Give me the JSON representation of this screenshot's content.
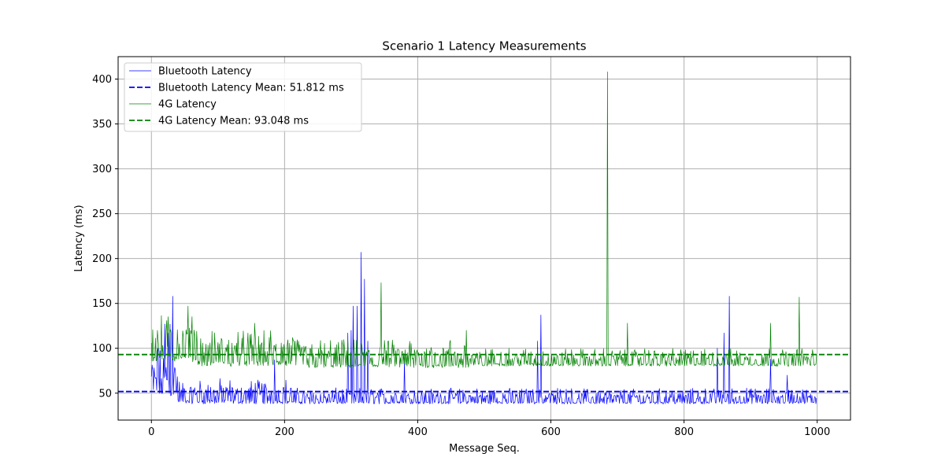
{
  "chart_data": {
    "type": "line",
    "title": "Scenario 1 Latency Measurements",
    "xlabel": "Message Seq.",
    "ylabel": "Latency (ms)",
    "xlim": [
      -50,
      1050
    ],
    "ylim": [
      20,
      425
    ],
    "x_ticks": [
      0,
      200,
      400,
      600,
      800,
      1000
    ],
    "y_ticks": [
      50,
      100,
      150,
      200,
      250,
      300,
      350,
      400
    ],
    "grid": true,
    "legend_position": "upper-left",
    "n_points": 1000,
    "series": [
      {
        "name": "Bluetooth Latency",
        "kind": "line",
        "color": "#0000ff",
        "segments": [
          {
            "from": 0,
            "to": 40,
            "low": 47,
            "high": 100
          },
          {
            "from": 40,
            "to": 215,
            "low": 38,
            "high": 67
          },
          {
            "from": 215,
            "to": 1000,
            "low": 38,
            "high": 56
          }
        ],
        "spikes": [
          {
            "x": 10,
            "y": 100
          },
          {
            "x": 20,
            "y": 127
          },
          {
            "x": 25,
            "y": 117
          },
          {
            "x": 28,
            "y": 127
          },
          {
            "x": 32,
            "y": 158
          },
          {
            "x": 185,
            "y": 87
          },
          {
            "x": 295,
            "y": 117
          },
          {
            "x": 300,
            "y": 120
          },
          {
            "x": 303,
            "y": 147
          },
          {
            "x": 309,
            "y": 147
          },
          {
            "x": 315,
            "y": 207
          },
          {
            "x": 320,
            "y": 177
          },
          {
            "x": 325,
            "y": 108
          },
          {
            "x": 380,
            "y": 87
          },
          {
            "x": 580,
            "y": 108
          },
          {
            "x": 585,
            "y": 137
          },
          {
            "x": 850,
            "y": 100
          },
          {
            "x": 860,
            "y": 117
          },
          {
            "x": 868,
            "y": 158
          },
          {
            "x": 930,
            "y": 88
          },
          {
            "x": 955,
            "y": 70
          }
        ]
      },
      {
        "name": "Bluetooth Latency Mean: 51.812 ms",
        "kind": "mean",
        "color": "#0000ff",
        "value": 51.812
      },
      {
        "name": "4G Latency",
        "kind": "line",
        "color": "#008000",
        "segments": [
          {
            "from": 0,
            "to": 70,
            "low": 85,
            "high": 140
          },
          {
            "from": 70,
            "to": 220,
            "low": 80,
            "high": 120
          },
          {
            "from": 220,
            "to": 480,
            "low": 78,
            "high": 110
          },
          {
            "from": 480,
            "to": 1000,
            "low": 80,
            "high": 100
          }
        ],
        "spikes": [
          {
            "x": 55,
            "y": 147
          },
          {
            "x": 130,
            "y": 118
          },
          {
            "x": 155,
            "y": 128
          },
          {
            "x": 345,
            "y": 173
          },
          {
            "x": 473,
            "y": 120
          },
          {
            "x": 685,
            "y": 408
          },
          {
            "x": 715,
            "y": 128
          },
          {
            "x": 930,
            "y": 128
          },
          {
            "x": 973,
            "y": 157
          }
        ]
      },
      {
        "name": "4G Latency Mean: 93.048 ms",
        "kind": "mean",
        "color": "#008000",
        "value": 93.048
      }
    ]
  }
}
